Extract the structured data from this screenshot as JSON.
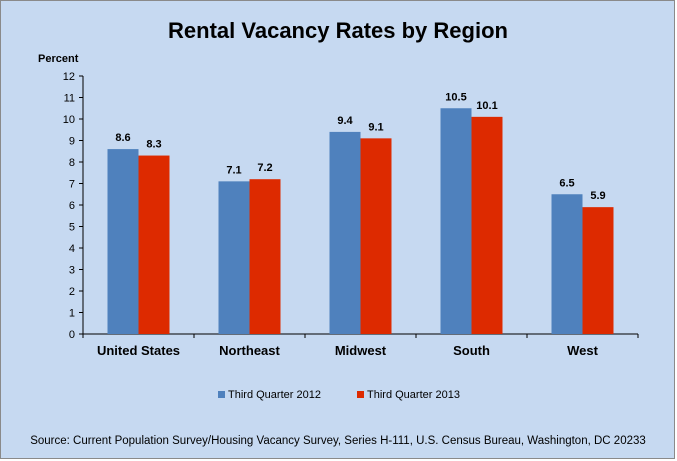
{
  "chart_data": {
    "type": "bar",
    "title": "Rental Vacancy Rates by Region",
    "ylabel": "Percent",
    "xlabel": "",
    "categories": [
      "United States",
      "Northeast",
      "Midwest",
      "South",
      "West"
    ],
    "series": [
      {
        "name": "Third Quarter 2012",
        "values": [
          8.6,
          7.1,
          9.4,
          10.5,
          6.5
        ],
        "color": "#4f81bd"
      },
      {
        "name": "Third Quarter 2013",
        "values": [
          8.3,
          7.2,
          9.1,
          10.1,
          5.9
        ],
        "color": "#dd2a00"
      }
    ],
    "ylim": [
      0,
      12
    ],
    "yticks": [
      0,
      1,
      2,
      3,
      4,
      5,
      6,
      7,
      8,
      9,
      10,
      11,
      12
    ],
    "grid": false,
    "legend": "bottom",
    "data_labels": true
  },
  "source": "Source: Current Population Survey/Housing Vacancy Survey, Series H-111, U.S. Census Bureau, Washington, DC 20233",
  "colors": {
    "background": "#c6d9f1",
    "border": "#8a8a8a"
  }
}
